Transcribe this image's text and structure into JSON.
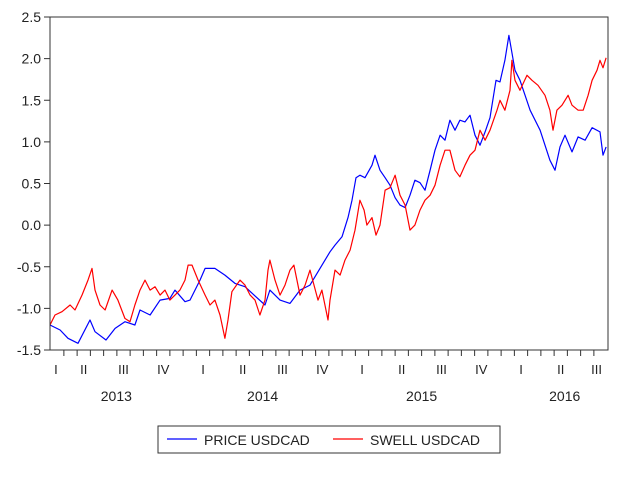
{
  "chart_data": {
    "type": "line",
    "title": "",
    "xlabel": "",
    "ylabel": "",
    "ylim": [
      -1.5,
      2.5
    ],
    "y_ticks": [
      "-1.5",
      "-1.0",
      "-0.5",
      "0.0",
      "0.5",
      "1.0",
      "1.5",
      "2.0",
      "2.5"
    ],
    "x_quarter_labels": [
      {
        "label": "I",
        "t": 2013.2
      },
      {
        "label": "II",
        "t": 2013.375
      },
      {
        "label": "III",
        "t": 2013.625
      },
      {
        "label": "IV",
        "t": 2013.875
      },
      {
        "label": "I",
        "t": 2014.125
      },
      {
        "label": "II",
        "t": 2014.375
      },
      {
        "label": "III",
        "t": 2014.625
      },
      {
        "label": "IV",
        "t": 2014.875
      },
      {
        "label": "I",
        "t": 2015.125
      },
      {
        "label": "II",
        "t": 2015.375
      },
      {
        "label": "III",
        "t": 2015.625
      },
      {
        "label": "IV",
        "t": 2015.875
      },
      {
        "label": "I",
        "t": 2016.125
      },
      {
        "label": "II",
        "t": 2016.375
      },
      {
        "label": "III",
        "t": 2016.6
      }
    ],
    "x_year_labels": [
      {
        "label": "2013",
        "t": 2013.58
      },
      {
        "label": "2014",
        "t": 2014.5
      },
      {
        "label": "2015",
        "t": 2015.5
      },
      {
        "label": "2016",
        "t": 2016.4
      }
    ],
    "xlim": [
      2013.163,
      2016.67
    ],
    "grid": false,
    "legend_position": "bottom",
    "series": [
      {
        "name": "PRICE USDCAD",
        "color": "#0000ff",
        "x": [
          2013.163,
          2013.226,
          2013.276,
          2013.339,
          2013.414,
          2013.446,
          2013.515,
          2013.572,
          2013.634,
          2013.697,
          2013.729,
          2013.792,
          2013.855,
          2013.917,
          2013.949,
          2014.012,
          2014.043,
          2014.106,
          2014.138,
          2014.2,
          2014.263,
          2014.326,
          2014.389,
          2014.452,
          2014.515,
          2014.546,
          2014.609,
          2014.672,
          2014.735,
          2014.798,
          2014.861,
          2014.924,
          2014.955,
          2014.999,
          2015.037,
          2015.062,
          2015.087,
          2015.112,
          2015.144,
          2015.188,
          2015.207,
          2015.238,
          2015.27,
          2015.301,
          2015.333,
          2015.364,
          2015.396,
          2015.427,
          2015.458,
          2015.49,
          2015.521,
          2015.553,
          2015.584,
          2015.616,
          2015.647,
          2015.678,
          2015.71,
          2015.741,
          2015.773,
          2015.804,
          2015.836,
          2015.867,
          2015.899,
          2015.93,
          2015.968,
          2015.993,
          2016.024,
          2016.049,
          2016.087,
          2016.119,
          2016.182,
          2016.245,
          2016.307,
          2016.339,
          2016.37,
          2016.402,
          2016.446,
          2016.484,
          2016.528,
          2016.572,
          2016.622,
          2016.641,
          2016.66
        ],
        "y": [
          -1.2,
          -1.26,
          -1.36,
          -1.42,
          -1.14,
          -1.28,
          -1.38,
          -1.24,
          -1.16,
          -1.2,
          -1.02,
          -1.08,
          -0.9,
          -0.88,
          -0.78,
          -0.92,
          -0.9,
          -0.66,
          -0.52,
          -0.52,
          -0.6,
          -0.7,
          -0.74,
          -0.85,
          -0.96,
          -0.78,
          -0.9,
          -0.94,
          -0.78,
          -0.72,
          -0.52,
          -0.32,
          -0.24,
          -0.14,
          0.09,
          0.3,
          0.57,
          0.6,
          0.57,
          0.72,
          0.84,
          0.66,
          0.57,
          0.48,
          0.33,
          0.24,
          0.21,
          0.36,
          0.54,
          0.51,
          0.42,
          0.66,
          0.9,
          1.08,
          1.02,
          1.26,
          1.14,
          1.26,
          1.24,
          1.32,
          1.08,
          0.96,
          1.12,
          1.29,
          1.74,
          1.72,
          1.98,
          2.28,
          1.86,
          1.74,
          1.38,
          1.14,
          0.78,
          0.66,
          0.94,
          1.08,
          0.88,
          1.06,
          1.02,
          1.17,
          1.12,
          0.84,
          0.94
        ]
      },
      {
        "name": "SWELL USDCAD",
        "color": "#ff0000",
        "x": [
          2013.163,
          2013.194,
          2013.238,
          2013.289,
          2013.32,
          2013.364,
          2013.402,
          2013.427,
          2013.446,
          2013.477,
          2013.509,
          2013.553,
          2013.59,
          2013.634,
          2013.666,
          2013.697,
          2013.729,
          2013.76,
          2013.792,
          2013.823,
          2013.855,
          2013.886,
          2013.917,
          2013.949,
          2013.98,
          2014.012,
          2014.031,
          2014.056,
          2014.094,
          2014.138,
          2014.169,
          2014.2,
          2014.232,
          2014.263,
          2014.282,
          2014.307,
          2014.358,
          2014.389,
          2014.421,
          2014.452,
          2014.483,
          2014.515,
          2014.534,
          2014.546,
          2014.578,
          2014.609,
          2014.641,
          2014.672,
          2014.697,
          2014.735,
          2014.767,
          2014.798,
          2014.848,
          2014.873,
          2014.911,
          2014.924,
          2014.955,
          2014.987,
          2015.018,
          2015.05,
          2015.081,
          2015.112,
          2015.138,
          2015.156,
          2015.188,
          2015.213,
          2015.238,
          2015.27,
          2015.301,
          2015.333,
          2015.364,
          2015.396,
          2015.427,
          2015.458,
          2015.49,
          2015.521,
          2015.553,
          2015.584,
          2015.616,
          2015.647,
          2015.678,
          2015.71,
          2015.741,
          2015.773,
          2015.804,
          2015.836,
          2015.867,
          2015.899,
          2015.93,
          2015.974,
          2015.993,
          2016.024,
          2016.056,
          2016.068,
          2016.087,
          2016.119,
          2016.163,
          2016.194,
          2016.232,
          2016.276,
          2016.307,
          2016.326,
          2016.351,
          2016.383,
          2016.421,
          2016.446,
          2016.484,
          2016.516,
          2016.547,
          2016.572,
          2016.603,
          2016.622,
          2016.641,
          2016.66
        ],
        "y": [
          -1.2,
          -1.08,
          -1.04,
          -0.96,
          -1.02,
          -0.84,
          -0.66,
          -0.52,
          -0.78,
          -0.96,
          -1.02,
          -0.78,
          -0.9,
          -1.12,
          -1.16,
          -0.96,
          -0.78,
          -0.66,
          -0.78,
          -0.74,
          -0.84,
          -0.78,
          -0.9,
          -0.84,
          -0.78,
          -0.66,
          -0.48,
          -0.48,
          -0.66,
          -0.84,
          -0.96,
          -0.9,
          -1.08,
          -1.36,
          -1.14,
          -0.8,
          -0.66,
          -0.72,
          -0.84,
          -0.9,
          -1.08,
          -0.9,
          -0.54,
          -0.42,
          -0.66,
          -0.84,
          -0.72,
          -0.54,
          -0.48,
          -0.84,
          -0.72,
          -0.54,
          -0.9,
          -0.78,
          -1.14,
          -0.9,
          -0.54,
          -0.6,
          -0.42,
          -0.3,
          -0.06,
          0.3,
          0.18,
          0.0,
          0.09,
          -0.12,
          0.0,
          0.42,
          0.45,
          0.6,
          0.36,
          0.24,
          -0.06,
          0.0,
          0.18,
          0.3,
          0.36,
          0.48,
          0.72,
          0.9,
          0.9,
          0.66,
          0.58,
          0.72,
          0.84,
          0.9,
          1.14,
          1.02,
          1.14,
          1.38,
          1.5,
          1.38,
          1.62,
          1.98,
          1.74,
          1.62,
          1.8,
          1.74,
          1.68,
          1.56,
          1.38,
          1.14,
          1.38,
          1.44,
          1.56,
          1.44,
          1.38,
          1.38,
          1.56,
          1.74,
          1.86,
          1.98,
          1.89,
          2.01
        ]
      }
    ]
  }
}
